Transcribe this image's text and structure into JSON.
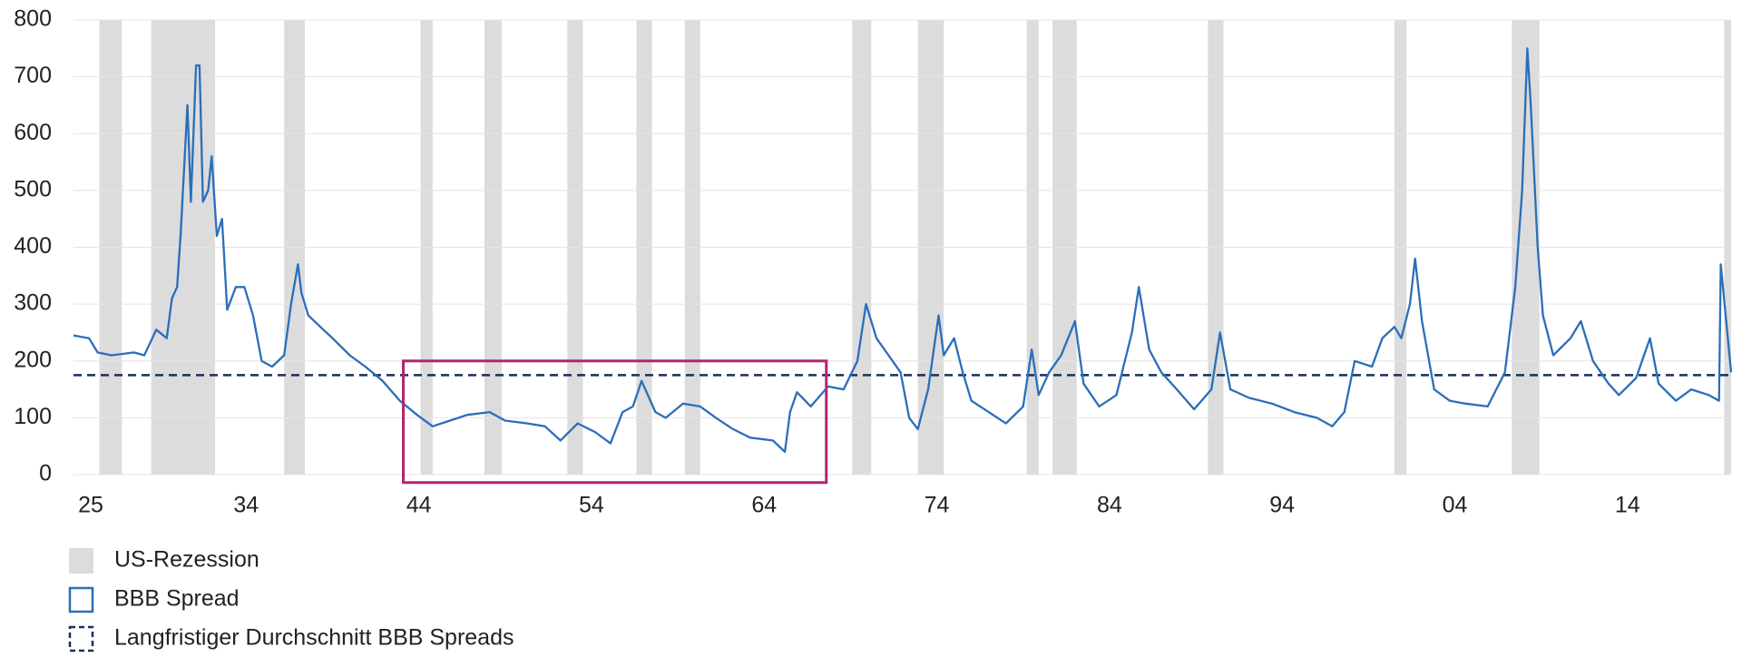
{
  "chart_data": {
    "type": "line",
    "xlim": [
      1924,
      2020
    ],
    "xticks": [
      {
        "value": 1925,
        "label": "25"
      },
      {
        "value": 1934,
        "label": "34"
      },
      {
        "value": 1944,
        "label": "44"
      },
      {
        "value": 1954,
        "label": "54"
      },
      {
        "value": 1964,
        "label": "64"
      },
      {
        "value": 1974,
        "label": "74"
      },
      {
        "value": 1984,
        "label": "84"
      },
      {
        "value": 1994,
        "label": "94"
      },
      {
        "value": 2004,
        "label": "04"
      },
      {
        "value": 2014,
        "label": "14"
      }
    ],
    "ylim": [
      0,
      800
    ],
    "yticks": [
      0,
      100,
      200,
      300,
      400,
      500,
      600,
      700,
      800
    ],
    "grid": true,
    "x": [
      1924.0,
      1924.9,
      1925.4,
      1926.2,
      1927.5,
      1928.1,
      1928.8,
      1929.4,
      1929.7,
      1930.0,
      1930.2,
      1930.6,
      1930.8,
      1931.1,
      1931.3,
      1931.5,
      1931.8,
      1932.0,
      1932.3,
      1932.6,
      1932.9,
      1933.4,
      1933.9,
      1934.4,
      1934.9,
      1935.5,
      1936.2,
      1936.6,
      1937.0,
      1937.2,
      1937.6,
      1938.3,
      1939.0,
      1940.0,
      1940.9,
      1941.9,
      1942.9,
      1943.9,
      1944.8,
      1945.8,
      1946.8,
      1948.1,
      1949.0,
      1950.3,
      1951.3,
      1952.2,
      1953.2,
      1954.2,
      1955.1,
      1955.8,
      1956.4,
      1956.9,
      1957.7,
      1958.3,
      1959.3,
      1960.3,
      1961.2,
      1962.2,
      1963.2,
      1964.5,
      1965.2,
      1965.5,
      1965.9,
      1966.7,
      1967.7,
      1968.6,
      1969.4,
      1969.9,
      1970.5,
      1971.2,
      1971.9,
      1972.4,
      1972.9,
      1973.5,
      1974.1,
      1974.4,
      1975.0,
      1975.5,
      1976.0,
      1977.0,
      1978.0,
      1979.0,
      1979.5,
      1979.9,
      1980.5,
      1981.2,
      1982.0,
      1982.5,
      1983.4,
      1984.4,
      1985.3,
      1985.7,
      1986.3,
      1987.0,
      1987.9,
      1988.9,
      1989.9,
      1990.4,
      1991.0,
      1992.1,
      1993.4,
      1994.7,
      1996.0,
      1996.9,
      1997.6,
      1998.2,
      1999.2,
      1999.8,
      2000.5,
      2000.9,
      2001.4,
      2001.7,
      2002.1,
      2002.8,
      2003.7,
      2004.6,
      2005.9,
      2006.9,
      2007.5,
      2007.9,
      2008.2,
      2008.4,
      2008.8,
      2009.1,
      2009.7,
      2010.7,
      2011.3,
      2012.0,
      2012.9,
      2013.5,
      2014.5,
      2015.3,
      2015.8,
      2016.8,
      2017.7,
      2018.7,
      2019.3,
      2019.4,
      2020.0
    ],
    "series": [
      {
        "name": "BBB Spread",
        "color": "#2a6ebb",
        "values": [
          245,
          240,
          215,
          210,
          215,
          210,
          255,
          240,
          310,
          330,
          420,
          650,
          480,
          720,
          720,
          480,
          500,
          560,
          420,
          450,
          290,
          330,
          330,
          280,
          200,
          190,
          210,
          300,
          370,
          320,
          280,
          260,
          240,
          210,
          190,
          165,
          130,
          105,
          85,
          95,
          105,
          110,
          95,
          90,
          85,
          60,
          90,
          75,
          55,
          110,
          120,
          165,
          110,
          100,
          125,
          120,
          100,
          80,
          65,
          60,
          40,
          110,
          145,
          120,
          155,
          150,
          200,
          300,
          240,
          210,
          180,
          100,
          80,
          150,
          280,
          210,
          240,
          180,
          130,
          110,
          90,
          120,
          220,
          140,
          180,
          210,
          270,
          160,
          120,
          140,
          250,
          330,
          220,
          180,
          150,
          115,
          150,
          250,
          150,
          135,
          125,
          110,
          100,
          85,
          110,
          200,
          190,
          240,
          260,
          240,
          300,
          380,
          270,
          150,
          130,
          125,
          120,
          180,
          330,
          500,
          750,
          650,
          400,
          280,
          210,
          240,
          270,
          200,
          160,
          140,
          170,
          240,
          160,
          130,
          150,
          140,
          130,
          370,
          180
        ]
      }
    ],
    "recession": {
      "name": "US-Rezession",
      "color": "#dcdcdc",
      "ranges": [
        [
          1925.5,
          1926.8
        ],
        [
          1928.5,
          1932.2
        ],
        [
          1936.2,
          1937.4
        ],
        [
          1944.1,
          1944.8
        ],
        [
          1947.8,
          1948.8
        ],
        [
          1952.6,
          1953.5
        ],
        [
          1956.6,
          1957.5
        ],
        [
          1959.4,
          1960.3
        ],
        [
          1969.1,
          1970.2
        ],
        [
          1972.9,
          1974.4
        ],
        [
          1979.2,
          1979.9
        ],
        [
          1980.7,
          1982.1
        ],
        [
          1989.7,
          1990.6
        ],
        [
          2000.5,
          2001.2
        ],
        [
          2007.3,
          2008.9
        ],
        [
          2019.6,
          2020.0
        ]
      ]
    },
    "average": {
      "name": "Langfristiger Durchschnitt BBB Spreads",
      "color": "#1a2f5a",
      "value": 175
    },
    "highlight": {
      "color": "#b5246f",
      "x": [
        1943.1,
        1967.6
      ],
      "y": [
        -14,
        200
      ]
    }
  }
}
